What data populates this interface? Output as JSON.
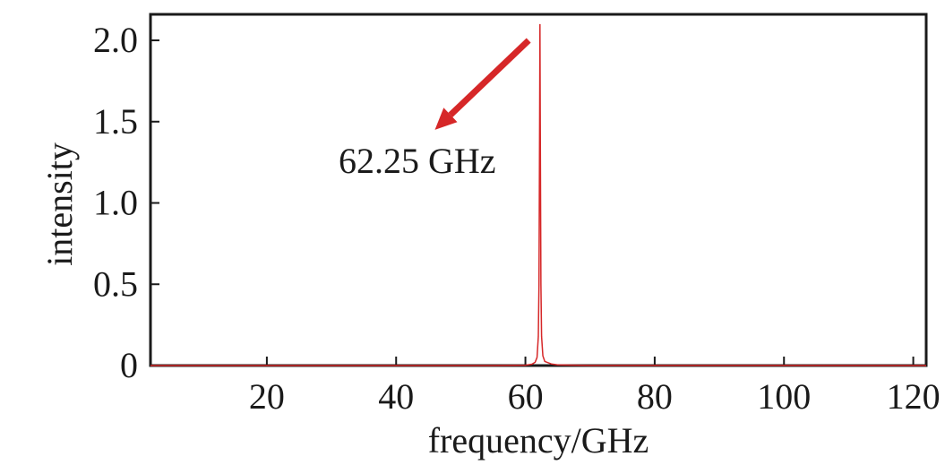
{
  "chart_data": {
    "type": "line",
    "xlabel": "frequency/GHz",
    "ylabel": "intensity",
    "xlim": [
      2,
      122
    ],
    "ylim": [
      0,
      2.16
    ],
    "x_ticks": [
      20,
      40,
      60,
      80,
      100,
      120
    ],
    "x_tick_labels": [
      "20",
      "40",
      "60",
      "80",
      "100",
      "120"
    ],
    "y_ticks": [
      0,
      0.5,
      1.0,
      1.5,
      2.0
    ],
    "y_tick_labels": [
      "0",
      "0.5",
      "1.0",
      "1.5",
      "2.0"
    ],
    "grid": false,
    "line_color": "#d62728",
    "arrow_color": "#d62728",
    "series": [
      {
        "peak_x": 62.25,
        "x": [
          2,
          55,
          60,
          61,
          61.5,
          61.8,
          62.0,
          62.1,
          62.2,
          62.25,
          62.3,
          62.4,
          62.5,
          62.7,
          63,
          64,
          65,
          70,
          122
        ],
        "y": [
          0,
          0,
          0.002,
          0.008,
          0.02,
          0.05,
          0.18,
          0.5,
          1.5,
          2.1,
          1.5,
          0.5,
          0.18,
          0.06,
          0.025,
          0.01,
          0.004,
          0.001,
          0
        ]
      }
    ],
    "annotations": [
      {
        "text": "62.25 GHz",
        "arrow_from": [
          60.5,
          2.0
        ],
        "arrow_to": [
          46,
          1.45
        ]
      }
    ]
  }
}
